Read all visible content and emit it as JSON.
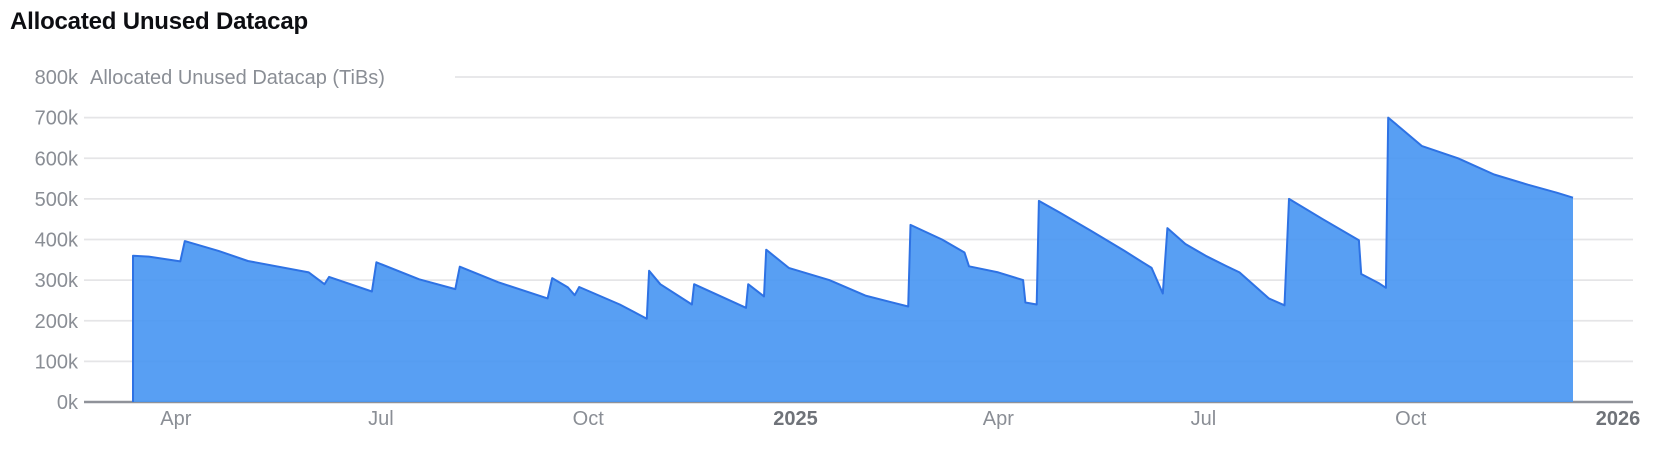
{
  "page": {
    "title": "Allocated Unused Datacap"
  },
  "colors": {
    "area_fill": "#4a97f2",
    "area_stroke": "#2e72e4",
    "gridline": "#e5e5e7",
    "axis_line": "#8f9299",
    "tick_text": "#8a8e95",
    "year_tick_text": "#6f7379",
    "title_text": "#0d0e12",
    "background": "#ffffff"
  },
  "chart_data": {
    "type": "area",
    "title": "Allocated Unused Datacap",
    "series_label": "Allocated Unused Datacap (TiBs)",
    "ylabel": "Allocated Unused Datacap (TiBs)",
    "xlabel": "",
    "unit": "TiBs",
    "ylim": [
      0,
      800000
    ],
    "grid": "horizontal",
    "legend_position": "top-left-inline",
    "y_ticks": [
      {
        "label": "800k",
        "value": 800000
      },
      {
        "label": "700k",
        "value": 700000
      },
      {
        "label": "600k",
        "value": 600000
      },
      {
        "label": "500k",
        "value": 500000
      },
      {
        "label": "400k",
        "value": 400000
      },
      {
        "label": "300k",
        "value": 300000
      },
      {
        "label": "200k",
        "value": 200000
      },
      {
        "label": "100k",
        "value": 100000
      },
      {
        "label": "0k",
        "value": 0
      }
    ],
    "x_ticks": [
      {
        "label": "Apr",
        "date": "2024-04-01",
        "bold": false
      },
      {
        "label": "Jul",
        "date": "2024-07-01",
        "bold": false
      },
      {
        "label": "Oct",
        "date": "2024-10-01",
        "bold": false
      },
      {
        "label": "2025",
        "date": "2025-01-01",
        "bold": true
      },
      {
        "label": "Apr",
        "date": "2025-04-01",
        "bold": false
      },
      {
        "label": "Jul",
        "date": "2025-07-01",
        "bold": false
      },
      {
        "label": "Oct",
        "date": "2025-10-01",
        "bold": false
      },
      {
        "label": "2026",
        "date": "2026-01-01",
        "bold": true
      }
    ],
    "series": [
      {
        "name": "Allocated Unused Datacap (TiBs)",
        "points": [
          [
            "2024-03-13",
            360000
          ],
          [
            "2024-03-20",
            358000
          ],
          [
            "2024-04-03",
            346000
          ],
          [
            "2024-04-05",
            396000
          ],
          [
            "2024-04-20",
            372000
          ],
          [
            "2024-05-03",
            347000
          ],
          [
            "2024-05-30",
            319000
          ],
          [
            "2024-06-06",
            290000
          ],
          [
            "2024-06-08",
            308000
          ],
          [
            "2024-06-27",
            272000
          ],
          [
            "2024-06-29",
            344000
          ],
          [
            "2024-07-18",
            302000
          ],
          [
            "2024-08-03",
            278000
          ],
          [
            "2024-08-05",
            333000
          ],
          [
            "2024-08-22",
            295000
          ],
          [
            "2024-09-13",
            255000
          ],
          [
            "2024-09-15",
            305000
          ],
          [
            "2024-09-22",
            282000
          ],
          [
            "2024-09-25",
            263000
          ],
          [
            "2024-09-27",
            283000
          ],
          [
            "2024-10-15",
            240000
          ],
          [
            "2024-10-27",
            205000
          ],
          [
            "2024-10-28",
            323000
          ],
          [
            "2024-11-02",
            290000
          ],
          [
            "2024-11-16",
            240000
          ],
          [
            "2024-11-17",
            290000
          ],
          [
            "2024-12-10",
            232000
          ],
          [
            "2024-12-11",
            290000
          ],
          [
            "2024-12-18",
            260000
          ],
          [
            "2024-12-19",
            375000
          ],
          [
            "2024-12-29",
            330000
          ],
          [
            "2025-01-16",
            300000
          ],
          [
            "2025-02-01",
            262000
          ],
          [
            "2025-02-20",
            235000
          ],
          [
            "2025-02-21",
            436000
          ],
          [
            "2025-03-07",
            400000
          ],
          [
            "2025-03-17",
            368000
          ],
          [
            "2025-03-19",
            334000
          ],
          [
            "2025-04-01",
            319000
          ],
          [
            "2025-04-12",
            300000
          ],
          [
            "2025-04-13",
            245000
          ],
          [
            "2025-04-18",
            240000
          ],
          [
            "2025-04-19",
            495000
          ],
          [
            "2025-04-28",
            467000
          ],
          [
            "2025-05-12",
            422000
          ],
          [
            "2025-05-27",
            372000
          ],
          [
            "2025-06-08",
            330000
          ],
          [
            "2025-06-13",
            267000
          ],
          [
            "2025-06-15",
            428000
          ],
          [
            "2025-06-23",
            389000
          ],
          [
            "2025-07-02",
            360000
          ],
          [
            "2025-07-11",
            335000
          ],
          [
            "2025-07-17",
            319000
          ],
          [
            "2025-07-30",
            255000
          ],
          [
            "2025-08-06",
            238000
          ],
          [
            "2025-08-08",
            500000
          ],
          [
            "2025-08-23",
            450000
          ],
          [
            "2025-09-08",
            398000
          ],
          [
            "2025-09-09",
            315000
          ],
          [
            "2025-09-17",
            292000
          ],
          [
            "2025-09-20",
            281000
          ],
          [
            "2025-09-21",
            700000
          ],
          [
            "2025-10-06",
            630000
          ],
          [
            "2025-10-22",
            600000
          ],
          [
            "2025-11-07",
            560000
          ],
          [
            "2025-11-22",
            535000
          ],
          [
            "2025-12-05",
            515000
          ],
          [
            "2025-12-12",
            503000
          ]
        ]
      }
    ]
  }
}
